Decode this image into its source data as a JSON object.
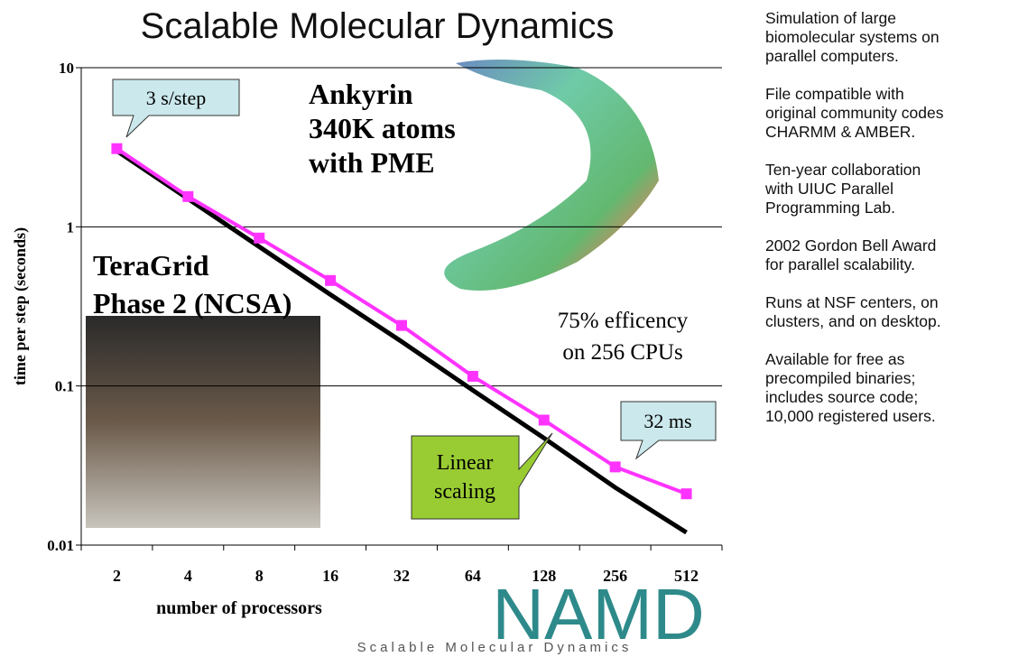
{
  "title": "Scalable Molecular Dynamics",
  "chart_data": {
    "type": "line",
    "y_label": "time per step (seconds)",
    "x_label": "number of processors",
    "categories": [
      "2",
      "4",
      "8",
      "16",
      "32",
      "64",
      "128",
      "256",
      "512"
    ],
    "yscale": "log",
    "ylim": [
      0.01,
      10
    ],
    "yticks": [
      0.01,
      0.1,
      1,
      10
    ],
    "grid": true,
    "series": [
      {
        "color": "#ff33ff",
        "marker": "square",
        "values": [
          3.1,
          1.55,
          0.85,
          0.46,
          0.24,
          0.115,
          0.061,
          0.031,
          0.021
        ]
      },
      {
        "color": "#000000",
        "values": [
          3.0,
          1.5,
          0.75,
          0.375,
          0.19,
          0.094,
          0.047,
          0.023,
          0.012
        ]
      }
    ],
    "annotations": {
      "start": "3 s/step",
      "end": "32 ms",
      "linear": [
        "Linear",
        "scaling"
      ],
      "molecule": [
        "Ankyrin",
        "340K atoms",
        "with PME"
      ],
      "machine": [
        "TeraGrid",
        "Phase 2 (NCSA)"
      ],
      "efficiency": [
        "75% efficency",
        "on 256 CPUs"
      ]
    }
  },
  "bullets": [
    [
      "Simulation of large",
      "biomolecular systems on",
      "parallel computers."
    ],
    [
      "File compatible with",
      "original community codes",
      "CHARMM & AMBER."
    ],
    [
      "Ten-year collaboration",
      "with UIUC Parallel",
      "Programming Lab."
    ],
    [
      "2002 Gordon Bell Award",
      "for parallel scalability."
    ],
    [
      "Runs at NSF centers, on",
      "clusters, and on desktop."
    ],
    [
      "Available for free as",
      "precompiled binaries;",
      "includes source code;",
      "10,000 registered users."
    ]
  ],
  "logo": {
    "name": "NAMD",
    "tagline": "Scalable Molecular Dynamics"
  }
}
